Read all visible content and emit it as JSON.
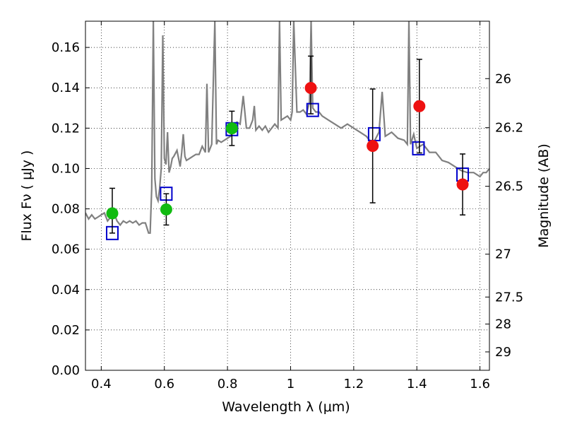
{
  "chart_data": {
    "type": "scatter",
    "xlabel": "Wavelength  λ (μm)",
    "ylabel": "Flux  Fν  ( μJy )",
    "ylabel_right": "Magnitude (AB)",
    "xlim": [
      0.35,
      1.63
    ],
    "ylim": [
      0.0,
      0.173
    ],
    "grid": true,
    "x_ticks": [
      {
        "value": 0.4,
        "label": "0.4"
      },
      {
        "value": 0.6,
        "label": "0.6"
      },
      {
        "value": 0.8,
        "label": "0.8"
      },
      {
        "value": 1.0,
        "label": "1"
      },
      {
        "value": 1.2,
        "label": "1.2"
      },
      {
        "value": 1.4,
        "label": "1.4"
      },
      {
        "value": 1.6,
        "label": "1.6"
      }
    ],
    "y_ticks": [
      {
        "value": 0.0,
        "label": "0.00"
      },
      {
        "value": 0.02,
        "label": "0.02"
      },
      {
        "value": 0.04,
        "label": "0.04"
      },
      {
        "value": 0.06,
        "label": "0.06"
      },
      {
        "value": 0.08,
        "label": "0.08"
      },
      {
        "value": 0.1,
        "label": "0.10"
      },
      {
        "value": 0.12,
        "label": "0.12"
      },
      {
        "value": 0.14,
        "label": "0.14"
      },
      {
        "value": 0.16,
        "label": "0.16"
      }
    ],
    "y2_ticks": [
      {
        "label": "26",
        "mag": 26.0
      },
      {
        "label": "26.2",
        "mag": 26.2
      },
      {
        "label": "26.5",
        "mag": 26.5
      },
      {
        "label": "27",
        "mag": 27.0
      },
      {
        "label": "27.5",
        "mag": 27.5
      },
      {
        "label": "28",
        "mag": 28.0
      },
      {
        "label": "29",
        "mag": 29.0
      }
    ],
    "colors": {
      "model_line": "#808080",
      "model_squares": "#0000cc",
      "green_points": "#11bb11",
      "red_points": "#ee1111",
      "errorbars": "#000000"
    },
    "series": [
      {
        "kind": "errorbar",
        "color": "green",
        "x": [
          0.435,
          0.606,
          0.814
        ],
        "y": [
          0.0778,
          0.0797,
          0.1199
        ],
        "yerr_low": [
          0.0098,
          0.0077,
          0.0085
        ],
        "yerr_high": [
          0.0124,
          0.0078,
          0.0085
        ]
      },
      {
        "kind": "errorbar",
        "color": "red",
        "x": [
          1.064,
          1.26,
          1.408,
          1.545
        ],
        "y": [
          0.1399,
          0.1112,
          0.1309,
          0.0921
        ],
        "yerr_low": [
          0.0128,
          0.0282,
          0.0232,
          0.0151
        ],
        "yerr_high": [
          0.0158,
          0.0282,
          0.0232,
          0.0151
        ]
      },
      {
        "kind": "model_points",
        "marker": "open-square",
        "x": [
          0.435,
          0.606,
          0.814,
          1.07,
          1.265,
          1.405,
          1.545
        ],
        "y": [
          0.068,
          0.0875,
          0.1195,
          0.129,
          0.117,
          0.11,
          0.097
        ]
      },
      {
        "kind": "spectrum",
        "x": [
          0.35,
          0.36,
          0.37,
          0.38,
          0.39,
          0.4,
          0.41,
          0.42,
          0.43,
          0.44,
          0.45,
          0.46,
          0.47,
          0.48,
          0.49,
          0.5,
          0.51,
          0.52,
          0.53,
          0.54,
          0.55,
          0.555,
          0.56,
          0.565,
          0.57,
          0.575,
          0.58,
          0.585,
          0.59,
          0.595,
          0.6,
          0.605,
          0.61,
          0.615,
          0.62,
          0.625,
          0.63,
          0.64,
          0.65,
          0.655,
          0.66,
          0.665,
          0.67,
          0.68,
          0.69,
          0.7,
          0.71,
          0.72,
          0.73,
          0.735,
          0.74,
          0.75,
          0.76,
          0.765,
          0.77,
          0.78,
          0.79,
          0.8,
          0.81,
          0.82,
          0.83,
          0.84,
          0.85,
          0.86,
          0.87,
          0.88,
          0.885,
          0.89,
          0.9,
          0.91,
          0.92,
          0.93,
          0.94,
          0.95,
          0.96,
          0.965,
          0.97,
          0.98,
          0.99,
          1.0,
          1.005,
          1.01,
          1.02,
          1.03,
          1.04,
          1.05,
          1.06,
          1.065,
          1.07,
          1.08,
          1.09,
          1.1,
          1.12,
          1.14,
          1.16,
          1.18,
          1.2,
          1.22,
          1.24,
          1.26,
          1.28,
          1.29,
          1.3,
          1.32,
          1.34,
          1.36,
          1.37,
          1.375,
          1.38,
          1.39,
          1.4,
          1.42,
          1.44,
          1.46,
          1.48,
          1.5,
          1.52,
          1.54,
          1.56,
          1.58,
          1.6,
          1.61,
          1.62,
          1.63
        ],
        "y": [
          0.078,
          0.075,
          0.077,
          0.075,
          0.076,
          0.077,
          0.078,
          0.074,
          0.076,
          0.078,
          0.074,
          0.072,
          0.074,
          0.073,
          0.074,
          0.073,
          0.074,
          0.072,
          0.073,
          0.073,
          0.068,
          0.068,
          0.09,
          0.173,
          0.095,
          0.086,
          0.084,
          0.09,
          0.1,
          0.166,
          0.105,
          0.102,
          0.118,
          0.098,
          0.101,
          0.105,
          0.106,
          0.109,
          0.101,
          0.108,
          0.117,
          0.106,
          0.104,
          0.105,
          0.106,
          0.107,
          0.107,
          0.111,
          0.108,
          0.142,
          0.108,
          0.112,
          0.173,
          0.112,
          0.114,
          0.113,
          0.114,
          0.115,
          0.116,
          0.12,
          0.123,
          0.122,
          0.136,
          0.12,
          0.12,
          0.124,
          0.131,
          0.119,
          0.121,
          0.119,
          0.121,
          0.118,
          0.12,
          0.122,
          0.12,
          0.173,
          0.124,
          0.125,
          0.126,
          0.124,
          0.128,
          0.173,
          0.128,
          0.128,
          0.129,
          0.127,
          0.133,
          0.173,
          0.13,
          0.128,
          0.128,
          0.126,
          0.124,
          0.122,
          0.12,
          0.122,
          0.12,
          0.118,
          0.116,
          0.112,
          0.118,
          0.138,
          0.116,
          0.118,
          0.115,
          0.114,
          0.112,
          0.173,
          0.112,
          0.117,
          0.11,
          0.112,
          0.108,
          0.108,
          0.104,
          0.103,
          0.101,
          0.099,
          0.098,
          0.098,
          0.096,
          0.098,
          0.098,
          0.1
        ]
      }
    ]
  }
}
